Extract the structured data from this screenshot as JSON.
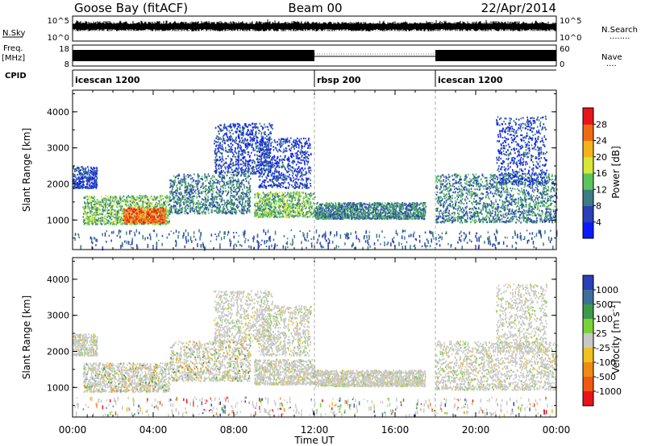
{
  "header": {
    "title": "Goose Bay (fitACF)",
    "beam": "Beam 00",
    "date": "22/Apr/2014"
  },
  "nsky_panel": {
    "left_label": "N.Sky",
    "left_ticks": [
      "10^5",
      "10^0"
    ],
    "right_ticks": [
      "10^5",
      "10^0"
    ],
    "right_label": "N.Search",
    "right_legend_mark": "........"
  },
  "freq_panel": {
    "left_label": "Freq.",
    "left_unit": "[MHz]",
    "left_ticks": [
      "18",
      "8"
    ],
    "right_ticks": [
      "60",
      "0"
    ],
    "right_label": "Nave",
    "right_legend_mark": "....",
    "segments": [
      {
        "start_hour": 0,
        "end_hour": 12,
        "active": true
      },
      {
        "start_hour": 12,
        "end_hour": 18,
        "active": false
      },
      {
        "start_hour": 18,
        "end_hour": 24,
        "active": true
      }
    ]
  },
  "cpid_panel": {
    "label": "CPID",
    "segments": [
      {
        "name": "icescan 1200",
        "start_hour": 0
      },
      {
        "name": "rbsp 200",
        "start_hour": 12
      },
      {
        "name": "icescan 1200",
        "start_hour": 18
      }
    ]
  },
  "chart_data": [
    {
      "type": "heatmap",
      "title": "",
      "xlabel": "",
      "ylabel": "Slant Range [km]",
      "xlim": [
        0,
        24
      ],
      "ylim": [
        180,
        4600
      ],
      "yticks": [
        "1000",
        "2000",
        "3000",
        "4000"
      ],
      "colorbar": {
        "label": "Power [dB]",
        "tick_labels": [
          "4",
          "8",
          "12",
          "16",
          "20",
          "24",
          "28"
        ],
        "range": [
          0,
          30
        ],
        "colors": [
          "#0a1aff",
          "#2a3fb8",
          "#3b7d82",
          "#5cc45c",
          "#d8e63a",
          "#f5b21a",
          "#f06a14",
          "#e8141a"
        ]
      },
      "bands": [
        {
          "start_hour": 0.0,
          "end_hour": 1.2,
          "range_min": 1900,
          "range_max": 2500,
          "level": 1
        },
        {
          "start_hour": 0.5,
          "end_hour": 4.8,
          "range_min": 900,
          "range_max": 1700,
          "level": 3
        },
        {
          "start_hour": 2.5,
          "end_hour": 4.6,
          "range_min": 950,
          "range_max": 1350,
          "level": 6
        },
        {
          "start_hour": 4.8,
          "end_hour": 8.8,
          "range_min": 1200,
          "range_max": 2300,
          "level": 2
        },
        {
          "start_hour": 7.0,
          "end_hour": 9.9,
          "range_min": 2300,
          "range_max": 3700,
          "level": 1
        },
        {
          "start_hour": 9.0,
          "end_hour": 12.0,
          "range_min": 1100,
          "range_max": 1800,
          "level": 3
        },
        {
          "start_hour": 9.2,
          "end_hour": 11.8,
          "range_min": 1900,
          "range_max": 3300,
          "level": 1
        },
        {
          "start_hour": 12.0,
          "end_hour": 17.5,
          "range_min": 1050,
          "range_max": 1500,
          "level": 2
        },
        {
          "start_hour": 18.0,
          "end_hour": 24.0,
          "range_min": 950,
          "range_max": 2300,
          "level": 2
        },
        {
          "start_hour": 21.0,
          "end_hour": 23.5,
          "range_min": 2000,
          "range_max": 3900,
          "level": 1
        }
      ]
    },
    {
      "type": "heatmap",
      "title": "",
      "xlabel": "Time UT",
      "ylabel": "Slant Range [km]",
      "xlim": [
        0,
        24
      ],
      "ylim": [
        180,
        4600
      ],
      "yticks": [
        "1000",
        "2000",
        "3000",
        "4000"
      ],
      "xticks": [
        "00:00",
        "04:00",
        "08:00",
        "12:00",
        "16:00",
        "20:00",
        "00:00"
      ],
      "colorbar": {
        "label": "Velocity [m s",
        "label_sup": "-1",
        "label_end": "]",
        "tick_labels": [
          "1000",
          "500",
          "100",
          "25",
          "-25",
          "-100",
          "-500",
          "-1000"
        ],
        "colors": [
          "#2a3fb8",
          "#3d6f9a",
          "#3d9a4a",
          "#7ad23a",
          "#c8c8c8",
          "#f2c020",
          "#f08a14",
          "#f05a10",
          "#e8141a"
        ]
      },
      "bands": [
        {
          "start_hour": 0.0,
          "end_hour": 1.2,
          "range_min": 1900,
          "range_max": 2500,
          "level": 4
        },
        {
          "start_hour": 0.5,
          "end_hour": 4.8,
          "range_min": 900,
          "range_max": 1700,
          "level": 3
        },
        {
          "start_hour": 4.8,
          "end_hour": 8.8,
          "range_min": 1200,
          "range_max": 2300,
          "level": 4
        },
        {
          "start_hour": 7.0,
          "end_hour": 9.9,
          "range_min": 2300,
          "range_max": 3700,
          "level": 4
        },
        {
          "start_hour": 9.0,
          "end_hour": 12.0,
          "range_min": 1100,
          "range_max": 1800,
          "level": 4
        },
        {
          "start_hour": 9.2,
          "end_hour": 11.8,
          "range_min": 1900,
          "range_max": 3300,
          "level": 4
        },
        {
          "start_hour": 12.0,
          "end_hour": 17.5,
          "range_min": 1050,
          "range_max": 1500,
          "level": 4
        },
        {
          "start_hour": 18.0,
          "end_hour": 24.0,
          "range_min": 950,
          "range_max": 2300,
          "level": 4
        },
        {
          "start_hour": 21.0,
          "end_hour": 23.5,
          "range_min": 2000,
          "range_max": 3900,
          "level": 4
        }
      ]
    }
  ]
}
